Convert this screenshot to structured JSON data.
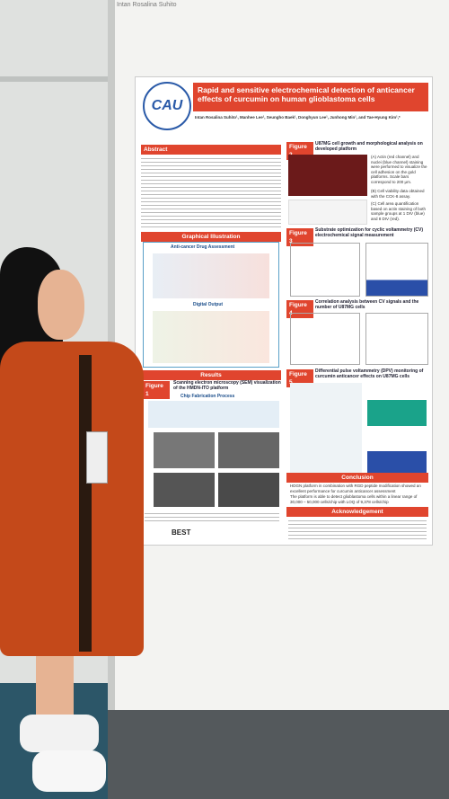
{
  "sign": "Intan Rosalina Suhito",
  "poster": {
    "title": "Rapid and sensitive electrochemical detection of anticancer effects of curcumin on human glioblastoma cells",
    "authors": "Intan Rosalina Suhito¹, Manhee Lee¹, Seungho Baek¹, Donghyun Lee¹, Junhong Min¹, and Tae-Hyung Kim¹,*",
    "abstract": "Abstract",
    "graphical": "Graphical Illustration",
    "anticancer": "Anti-cancer Drug Assessment",
    "digital": "Digital Output",
    "results": "Results",
    "fig1": {
      "label": "Figure 1",
      "caption": "Scanning electron microscopy (SEM) visualization of the HMDN-ITO platform",
      "sub": "Chip Fabrication Process"
    },
    "fig2": {
      "label": "Figure 2",
      "caption": "U87MG cell growth and morphological analysis on developed platform",
      "notes": [
        "(A) Actin (red channel) and nuclei (blue channel) staining were performed to visualize the cell adhesion on the gold platforms. Scale bars correspond to 200 μm.",
        "(B) Cell viability data obtained with the CCK-8 assay.",
        "(C) Cell area quantification based on actin staining of both sample groups at 1 DIV (blue) and 8 DIV (red)."
      ]
    },
    "fig3": {
      "label": "Figure 3",
      "caption": "Substrate optimization for cyclic voltammetry (CV) electrochemical signal measurement"
    },
    "fig4": {
      "label": "Figure 4",
      "caption": "Correlation analysis between CV signals and the number of U87MG cells"
    },
    "fig5": {
      "label": "Figure 5",
      "caption": "Differential pulse voltammetry (DPV) monitoring of curcumin anticancer effects on U87MG cells"
    },
    "conclusion": "Conclusion",
    "conclusion_points": [
      "HDGN platform in combination with RGD peptide modification showed an excellent performance for curcumin anticancer assessment",
      "The platform is able to detect glioblastoma cells within a linear range of 30,000 – 50,000 cells/chip with LOQ of 9,378 cells/chip"
    ],
    "acknowledgement": "Acknowledgement",
    "logo": "CAU",
    "footer": "BEST"
  }
}
